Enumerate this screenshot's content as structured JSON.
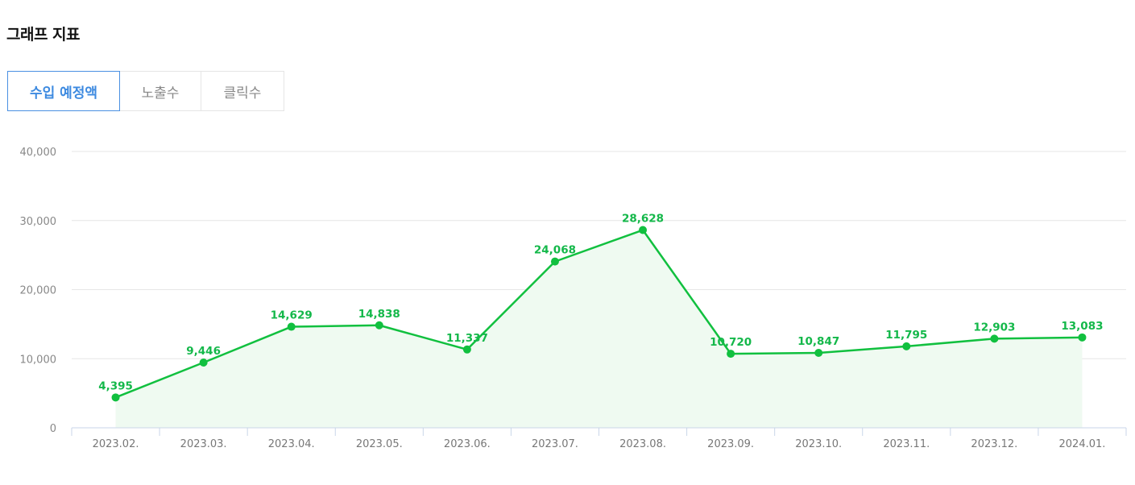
{
  "header": {
    "title": "그래프 지표"
  },
  "tabs": [
    {
      "label": "수입 예정액",
      "active": true
    },
    {
      "label": "노출수",
      "active": false
    },
    {
      "label": "클릭수",
      "active": false
    }
  ],
  "colors": {
    "accent": "#4a90e2",
    "line": "#11c03f",
    "area": "#effaf1",
    "label": "#14b84a"
  },
  "chart_data": {
    "type": "area",
    "categories": [
      "2023.02.",
      "2023.03.",
      "2023.04.",
      "2023.05.",
      "2023.06.",
      "2023.07.",
      "2023.08.",
      "2023.09.",
      "2023.10.",
      "2023.11.",
      "2023.12.",
      "2024.01."
    ],
    "values": [
      4395,
      9446,
      14629,
      14838,
      11337,
      24068,
      28628,
      10720,
      10847,
      11795,
      12903,
      13083
    ],
    "value_labels": [
      "4,395",
      "9,446",
      "14,629",
      "14,838",
      "11,337",
      "24,068",
      "28,628",
      "10,720",
      "10,847",
      "11,795",
      "12,903",
      "13,083"
    ],
    "yticks": [
      "0",
      "10,000",
      "20,000",
      "30,000",
      "40,000"
    ],
    "ytick_values": [
      0,
      10000,
      20000,
      30000,
      40000
    ],
    "ylim": [
      0,
      40000
    ],
    "grid": true,
    "legend": "none"
  }
}
